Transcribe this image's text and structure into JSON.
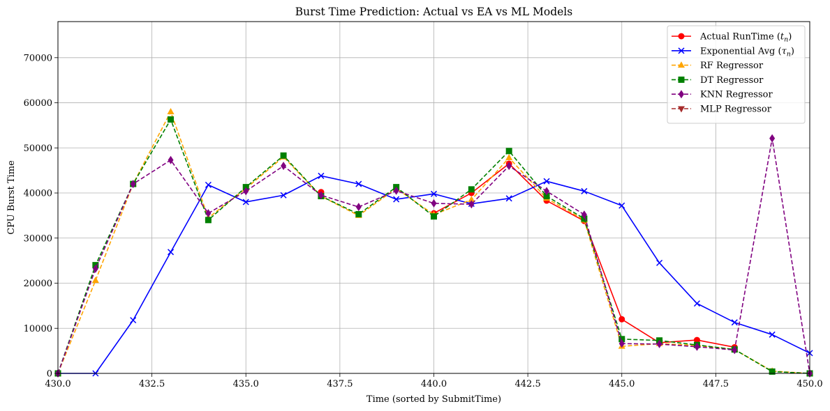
{
  "chart_data": {
    "type": "line",
    "title": "Burst Time Prediction: Actual vs EA vs ML Models",
    "xlabel": "Time (sorted by SubmitTime)",
    "ylabel": "CPU Burst Time",
    "xlim": [
      430,
      450
    ],
    "ylim": [
      0,
      78000
    ],
    "x_ticks": [
      430,
      432.5,
      435,
      437.5,
      440,
      442.5,
      445,
      447.5,
      450
    ],
    "x_tick_labels": [
      "430.0",
      "432.5",
      "435.0",
      "437.5",
      "440.0",
      "442.5",
      "445.0",
      "447.5",
      "450.0"
    ],
    "y_ticks": [
      0,
      10000,
      20000,
      30000,
      40000,
      50000,
      60000,
      70000
    ],
    "y_tick_labels": [
      "0",
      "10000",
      "20000",
      "30000",
      "40000",
      "50000",
      "60000",
      "70000"
    ],
    "grid": true,
    "legend_position": "top-right",
    "x": [
      430,
      431,
      432,
      433,
      434,
      435,
      436,
      437,
      438,
      439,
      440,
      441,
      442,
      443,
      444,
      445,
      446,
      447,
      448,
      449,
      450
    ],
    "series": [
      {
        "name": "Actual RunTime ($t_n$)",
        "legend_main": "Actual RunTime (",
        "legend_sym": "t",
        "legend_sub": "n",
        "legend_close": ")",
        "color": "#ff0000",
        "linestyle": "solid",
        "marker": "circle",
        "values": [
          0,
          null,
          null,
          null,
          null,
          null,
          null,
          40200,
          null,
          null,
          35500,
          40000,
          46500,
          38300,
          33800,
          12000,
          6800,
          7400,
          5800,
          null,
          null
        ]
      },
      {
        "name": "Exponential Avg ($\\tau_n$)",
        "legend_main": "Exponential Avg (",
        "legend_sym": "τ",
        "legend_sub": "n",
        "legend_close": ")",
        "color": "#0000ff",
        "linestyle": "solid",
        "marker": "x",
        "values": [
          0,
          0,
          11800,
          26900,
          41800,
          38000,
          39500,
          43800,
          42000,
          38600,
          39800,
          37600,
          38800,
          42600,
          40400,
          37200,
          24500,
          15500,
          11300,
          8600,
          4500
        ]
      },
      {
        "name": "RF Regressor",
        "legend_main": "RF Regressor",
        "color": "#ffa500",
        "linestyle": "dashed",
        "marker": "triangle",
        "values": [
          0,
          20600,
          42000,
          58000,
          34500,
          41000,
          48000,
          39300,
          35000,
          41000,
          35200,
          38500,
          47800,
          38800,
          34000,
          6000,
          6600,
          6200,
          5300,
          500,
          0
        ]
      },
      {
        "name": "DT Regressor",
        "legend_main": "DT Regressor",
        "color": "#008000",
        "linestyle": "dashed",
        "marker": "square",
        "values": [
          0,
          24000,
          42000,
          56300,
          34000,
          41300,
          48300,
          39300,
          35300,
          41300,
          34800,
          40800,
          49300,
          39300,
          34300,
          7600,
          7300,
          6300,
          5300,
          400,
          0
        ]
      },
      {
        "name": "KNN Regressor",
        "legend_main": "KNN Regressor",
        "color": "#800080",
        "linestyle": "dashed",
        "marker": "diamond",
        "values": [
          0,
          23200,
          42000,
          47300,
          35500,
          40400,
          46000,
          39500,
          36900,
          40500,
          37700,
          37500,
          46000,
          40400,
          35200,
          6600,
          6500,
          5900,
          5200,
          52100,
          0
        ]
      },
      {
        "name": "MLP Regressor",
        "legend_main": "MLP Regressor",
        "color": "#a52a2a",
        "linestyle": "dashed",
        "marker": "triangle-down",
        "values": [
          null,
          null,
          null,
          null,
          null,
          null,
          null,
          null,
          null,
          null,
          null,
          null,
          null,
          null,
          null,
          null,
          null,
          null,
          null,
          null,
          null
        ]
      }
    ]
  }
}
